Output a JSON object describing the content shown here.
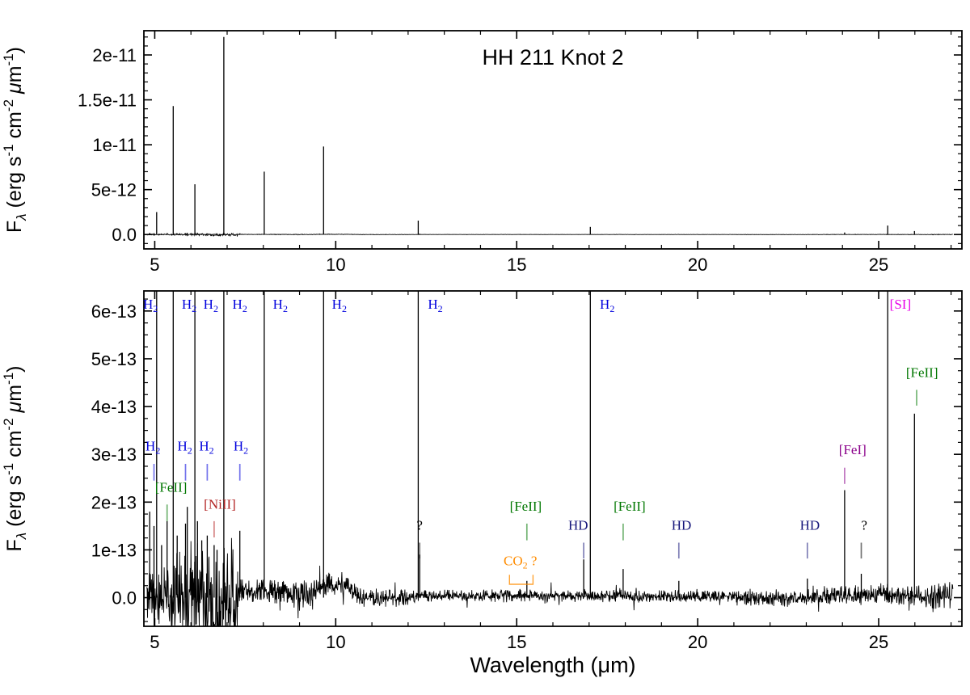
{
  "colors": {
    "h2": "#0000dd",
    "feii": "#007700",
    "niii": "#b22222",
    "hd": "#15157a",
    "si": "#e800e8",
    "fei": "#8b008b",
    "co2": "#ff8c00",
    "unknown": "#000000",
    "spectrum": "#000000"
  },
  "chart_data": {
    "type": "line",
    "title": "HH 211 Knot 2",
    "xlabel": "Wavelength (μm)",
    "ylabel": "F_λ (erg s-1 cm-2 μm-1)",
    "ylabel_parts": [
      {
        "t": "F"
      },
      {
        "t": "λ",
        "s": "sub",
        "i": true
      },
      {
        "t": " (erg s"
      },
      {
        "t": "-1",
        "s": "sup"
      },
      {
        "t": " cm"
      },
      {
        "t": "-2",
        "s": "sup"
      },
      {
        "t": " "
      },
      {
        "t": "μ",
        "i": true
      },
      {
        "t": "m"
      },
      {
        "t": "-1",
        "s": "sup"
      },
      {
        "t": ")"
      }
    ],
    "x_range": [
      4.7,
      27.3
    ],
    "xticks": [
      5,
      10,
      15,
      20,
      25
    ],
    "xtick_labels": [
      "5",
      "10",
      "15",
      "20",
      "25"
    ],
    "panels": [
      {
        "name": "full-scale",
        "y_range": [
          -1.6e-12,
          2.27e-11
        ],
        "yticks": [
          0,
          5e-12,
          1e-11,
          1.5e-11,
          2e-11
        ],
        "ytick_labels": [
          "0.0",
          "5e-12",
          "1e-11",
          "1.5e-11",
          "2e-11"
        ],
        "y_major_step": 5e-12,
        "y_minor_step": 1e-12
      },
      {
        "name": "zoomed",
        "y_range": [
          -6e-14,
          6.42e-13
        ],
        "yticks": [
          0,
          1e-13,
          2e-13,
          3e-13,
          4e-13,
          5e-13,
          6e-13
        ],
        "ytick_labels": [
          "0.0",
          "1e-13",
          "2e-13",
          "3e-13",
          "4e-13",
          "5e-13",
          "6e-13"
        ],
        "y_major_step": 1e-13,
        "y_minor_step": 2.5e-14,
        "annotations": [
          {
            "parts": [
              {
                "t": "H"
              },
              {
                "t": "2",
                "s": "sub"
              }
            ],
            "color": "h2",
            "lx": 4.88,
            "ly": 6.05e-13
          },
          {
            "parts": [
              {
                "t": "H"
              },
              {
                "t": "2",
                "s": "sub"
              }
            ],
            "color": "h2",
            "lx": 5.95,
            "ly": 6.05e-13
          },
          {
            "parts": [
              {
                "t": "H"
              },
              {
                "t": "2",
                "s": "sub"
              }
            ],
            "color": "h2",
            "lx": 6.55,
            "ly": 6.05e-13
          },
          {
            "parts": [
              {
                "t": "H"
              },
              {
                "t": "2",
                "s": "sub"
              }
            ],
            "color": "h2",
            "lx": 7.35,
            "ly": 6.05e-13
          },
          {
            "parts": [
              {
                "t": "H"
              },
              {
                "t": "2",
                "s": "sub"
              }
            ],
            "color": "h2",
            "lx": 8.47,
            "ly": 6.05e-13
          },
          {
            "parts": [
              {
                "t": "H"
              },
              {
                "t": "2",
                "s": "sub"
              }
            ],
            "color": "h2",
            "lx": 10.1,
            "ly": 6.05e-13
          },
          {
            "parts": [
              {
                "t": "H"
              },
              {
                "t": "2",
                "s": "sub"
              }
            ],
            "color": "h2",
            "lx": 12.75,
            "ly": 6.05e-13
          },
          {
            "parts": [
              {
                "t": "H"
              },
              {
                "t": "2",
                "s": "sub"
              }
            ],
            "color": "h2",
            "lx": 17.5,
            "ly": 6.05e-13
          },
          {
            "parts": [
              {
                "t": "[SI]"
              }
            ],
            "color": "si",
            "lx": 25.6,
            "ly": 6.05e-13
          },
          {
            "parts": [
              {
                "t": "[FeII]"
              }
            ],
            "color": "feii",
            "lx": 26.2,
            "ly": 4.62e-13,
            "tick": {
              "x": 26.05,
              "y1": 4.35e-13,
              "y2": 4.02e-13
            }
          },
          {
            "parts": [
              {
                "t": "H"
              },
              {
                "t": "2",
                "s": "sub"
              }
            ],
            "color": "h2",
            "lx": 4.95,
            "ly": 3.08e-13,
            "tick": {
              "x": 4.98,
              "y1": 2.8e-13,
              "y2": 2.45e-13
            }
          },
          {
            "parts": [
              {
                "t": "H"
              },
              {
                "t": "2",
                "s": "sub"
              }
            ],
            "color": "h2",
            "lx": 5.83,
            "ly": 3.08e-13,
            "tick": {
              "x": 5.85,
              "y1": 2.8e-13,
              "y2": 2.45e-13
            }
          },
          {
            "parts": [
              {
                "t": "H"
              },
              {
                "t": "2",
                "s": "sub"
              }
            ],
            "color": "h2",
            "lx": 6.43,
            "ly": 3.08e-13,
            "tick": {
              "x": 6.45,
              "y1": 2.8e-13,
              "y2": 2.45e-13
            }
          },
          {
            "parts": [
              {
                "t": "H"
              },
              {
                "t": "2",
                "s": "sub"
              }
            ],
            "color": "h2",
            "lx": 7.38,
            "ly": 3.08e-13,
            "tick": {
              "x": 7.35,
              "y1": 2.8e-13,
              "y2": 2.45e-13
            }
          },
          {
            "parts": [
              {
                "t": "[FeII]"
              }
            ],
            "color": "feii",
            "lx": 5.45,
            "ly": 2.22e-13,
            "tick": {
              "x": 5.34,
              "y1": 1.95e-13,
              "y2": 1.6e-13
            }
          },
          {
            "parts": [
              {
                "t": "[NiII]"
              }
            ],
            "color": "niii",
            "lx": 6.8,
            "ly": 1.86e-13,
            "tick": {
              "x": 6.64,
              "y1": 1.6e-13,
              "y2": 1.26e-13
            }
          },
          {
            "parts": [
              {
                "t": "?"
              }
            ],
            "color": "unknown",
            "lx": 12.32,
            "ly": 1.42e-13,
            "tick": {
              "x": 12.32,
              "y1": 1.15e-13,
              "y2": 8.2e-14
            }
          },
          {
            "parts": [
              {
                "t": "[FeII]"
              }
            ],
            "color": "feii",
            "lx": 15.25,
            "ly": 1.82e-13,
            "tick": {
              "x": 15.28,
              "y1": 1.55e-13,
              "y2": 1.2e-13
            }
          },
          {
            "parts": [
              {
                "t": "HD"
              }
            ],
            "color": "hd",
            "lx": 16.7,
            "ly": 1.42e-13,
            "tick": {
              "x": 16.85,
              "y1": 1.15e-13,
              "y2": 8.2e-14
            }
          },
          {
            "parts": [
              {
                "t": "[FeII]"
              }
            ],
            "color": "feii",
            "lx": 18.12,
            "ly": 1.82e-13,
            "tick": {
              "x": 17.94,
              "y1": 1.55e-13,
              "y2": 1.2e-13
            }
          },
          {
            "parts": [
              {
                "t": "HD"
              }
            ],
            "color": "hd",
            "lx": 19.55,
            "ly": 1.42e-13,
            "tick": {
              "x": 19.48,
              "y1": 1.15e-13,
              "y2": 8.2e-14
            }
          },
          {
            "parts": [
              {
                "t": "HD"
              }
            ],
            "color": "hd",
            "lx": 23.1,
            "ly": 1.42e-13,
            "tick": {
              "x": 23.03,
              "y1": 1.15e-13,
              "y2": 8.2e-14
            }
          },
          {
            "parts": [
              {
                "t": "[FeI]"
              }
            ],
            "color": "fei",
            "lx": 24.28,
            "ly": 3e-13,
            "tick": {
              "x": 24.06,
              "y1": 2.72e-13,
              "y2": 2.38e-13
            }
          },
          {
            "parts": [
              {
                "t": "?"
              }
            ],
            "color": "unknown",
            "lx": 24.6,
            "ly": 1.42e-13,
            "tick": {
              "x": 24.52,
              "y1": 1.15e-13,
              "y2": 8.2e-14
            }
          },
          {
            "parts": [
              {
                "t": "CO"
              },
              {
                "t": "2",
                "s": "sub"
              },
              {
                "t": " ?"
              }
            ],
            "color": "co2",
            "lx": 15.1,
            "ly": 6.8e-14,
            "bracket": {
              "x1": 14.8,
              "x2": 15.45,
              "y_low": 2.8e-14,
              "y_high": 4.8e-14
            }
          }
        ]
      }
    ],
    "spectral_lines": [
      {
        "wavelength": 5.053,
        "flux": 2.5e-12
      },
      {
        "wavelength": 5.511,
        "flux": 1.43e-11
      },
      {
        "wavelength": 6.109,
        "flux": 5.6e-12
      },
      {
        "wavelength": 6.909,
        "flux": 2.2e-11
      },
      {
        "wavelength": 8.025,
        "flux": 7e-12
      },
      {
        "wavelength": 9.665,
        "flux": 9.8e-12
      },
      {
        "wavelength": 12.279,
        "flux": 1.55e-12
      },
      {
        "wavelength": 17.035,
        "flux": 8.5e-13
      },
      {
        "wavelength": 25.249,
        "flux": 1e-12
      },
      {
        "wavelength": 25.988,
        "flux": 3.85e-13
      },
      {
        "wavelength": 24.06,
        "flux": 2.25e-13
      },
      {
        "wavelength": 4.98,
        "flux": 1.5e-13
      },
      {
        "wavelength": 5.34,
        "flux": 1.6e-13
      },
      {
        "wavelength": 5.85,
        "flux": 1.55e-13
      },
      {
        "wavelength": 6.45,
        "flux": 1.3e-13
      },
      {
        "wavelength": 6.64,
        "flux": 1.1e-13
      },
      {
        "wavelength": 7.35,
        "flux": 1.4e-13
      },
      {
        "wavelength": 12.32,
        "flux": 9e-14
      },
      {
        "wavelength": 15.28,
        "flux": 3.5e-14
      },
      {
        "wavelength": 16.85,
        "flux": 8e-14
      },
      {
        "wavelength": 17.94,
        "flux": 6e-14
      },
      {
        "wavelength": 19.48,
        "flux": 3.5e-14
      },
      {
        "wavelength": 23.03,
        "flux": 4e-14
      },
      {
        "wavelength": 24.52,
        "flux": 5e-14
      }
    ],
    "noise_spikes": [
      {
        "x": 4.86,
        "flux": 1.8e-13
      },
      {
        "x": 5.19,
        "flux": 1.1e-13
      },
      {
        "x": 5.62,
        "flux": 1.3e-13
      },
      {
        "x": 5.9,
        "flux": 1.9e-13
      },
      {
        "x": 6.18,
        "flux": 1.6e-13
      },
      {
        "x": 6.3,
        "flux": 1.2e-13
      },
      {
        "x": 6.72,
        "flux": 1e-13
      }
    ],
    "continuum_segments": [
      {
        "x0": 4.78,
        "x1": 5.45,
        "base": 0,
        "amp": 4e-14
      },
      {
        "x0": 5.45,
        "x1": 6.35,
        "base": 0,
        "amp": 6.5e-14
      },
      {
        "x0": 6.35,
        "x1": 7.3,
        "base": -2e-14,
        "amp": 9e-14
      },
      {
        "x0": 7.3,
        "x1": 8.6,
        "base": 1.2e-14,
        "amp": 1.7e-14
      },
      {
        "x0": 8.6,
        "x1": 9.4,
        "base": 5e-15,
        "amp": 2e-14
      },
      {
        "x0": 9.4,
        "x1": 10.6,
        "base": 8e-15,
        "amp": 1.5e-14
      },
      {
        "x0": 10.6,
        "x1": 12.0,
        "base": 0,
        "amp": 1.2e-14
      },
      {
        "x0": 12.0,
        "x1": 17.0,
        "base": 4e-15,
        "amp": 8e-15
      },
      {
        "x0": 17.0,
        "x1": 21.0,
        "base": 3e-15,
        "amp": 8e-15
      },
      {
        "x0": 21.0,
        "x1": 23.5,
        "base": 0,
        "amp": 1.1e-14
      },
      {
        "x0": 23.5,
        "x1": 26.3,
        "base": 5e-15,
        "amp": 1.3e-14
      },
      {
        "x0": 26.3,
        "x1": 27.06,
        "base": 5e-15,
        "amp": 2e-14
      }
    ],
    "continuum_bumps": [
      {
        "center": 9.95,
        "sigma": 0.35,
        "height": 2.2e-14
      }
    ]
  }
}
